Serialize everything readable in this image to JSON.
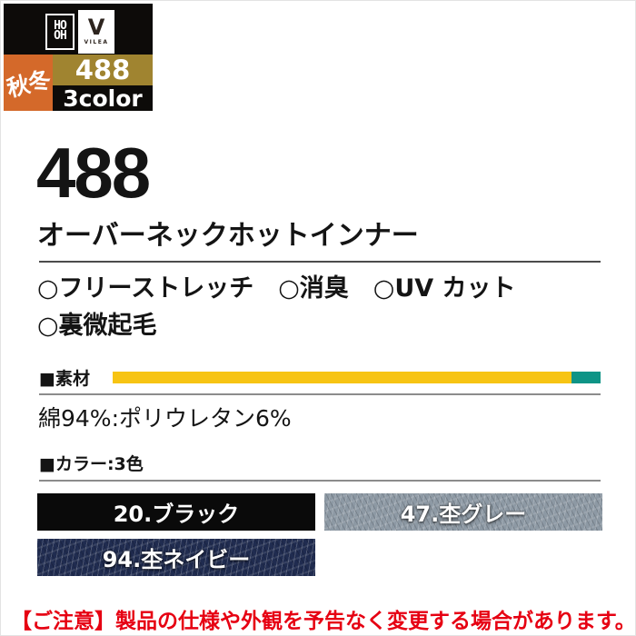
{
  "badge": {
    "season": "秋冬",
    "product_code": "488",
    "color_count_label": "3color",
    "brand_primary": "HOOH",
    "brand_primary_lines": [
      "HO",
      "OH"
    ],
    "brand_secondary": "VILEA",
    "brand_secondary_initial": "V",
    "colors": {
      "season_bg": "#d4692a",
      "code_bg": "#a08430",
      "count_bg": "#0d0b09",
      "block_bg": "#0d0b09"
    }
  },
  "product": {
    "code": "488",
    "name": "オーバーネックホットインナー"
  },
  "features": {
    "marker": "○",
    "lines": [
      [
        "フリーストレッチ",
        "消臭",
        "UV カット"
      ],
      [
        "裏微起毛"
      ]
    ]
  },
  "material": {
    "heading": "■素材",
    "composition_text": "綿94%:ポリウレタン6%",
    "bar": [
      {
        "name": "綿",
        "percent": 94,
        "color": "#f7c413"
      },
      {
        "name": "ポリウレタン",
        "percent": 6,
        "color": "#0e9486"
      }
    ]
  },
  "colors_section": {
    "heading": "■カラー:3色",
    "count": 3,
    "swatches": [
      {
        "code": "20",
        "name": "ブラック",
        "label": "20.ブラック",
        "hex": "#0a0a0a",
        "texture": "solid"
      },
      {
        "code": "47",
        "name": "杢グレー",
        "label": "47.杢グレー",
        "hex": "#8d99a4",
        "texture": "heather"
      },
      {
        "code": "94",
        "name": "杢ネイビー",
        "label": "94.杢ネイビー",
        "hex": "#202c50",
        "texture": "heather"
      }
    ]
  },
  "notice": {
    "text": "【ご注意】製品の仕様や外観を予告なく変更する場合があります。",
    "color": "#e60012"
  }
}
